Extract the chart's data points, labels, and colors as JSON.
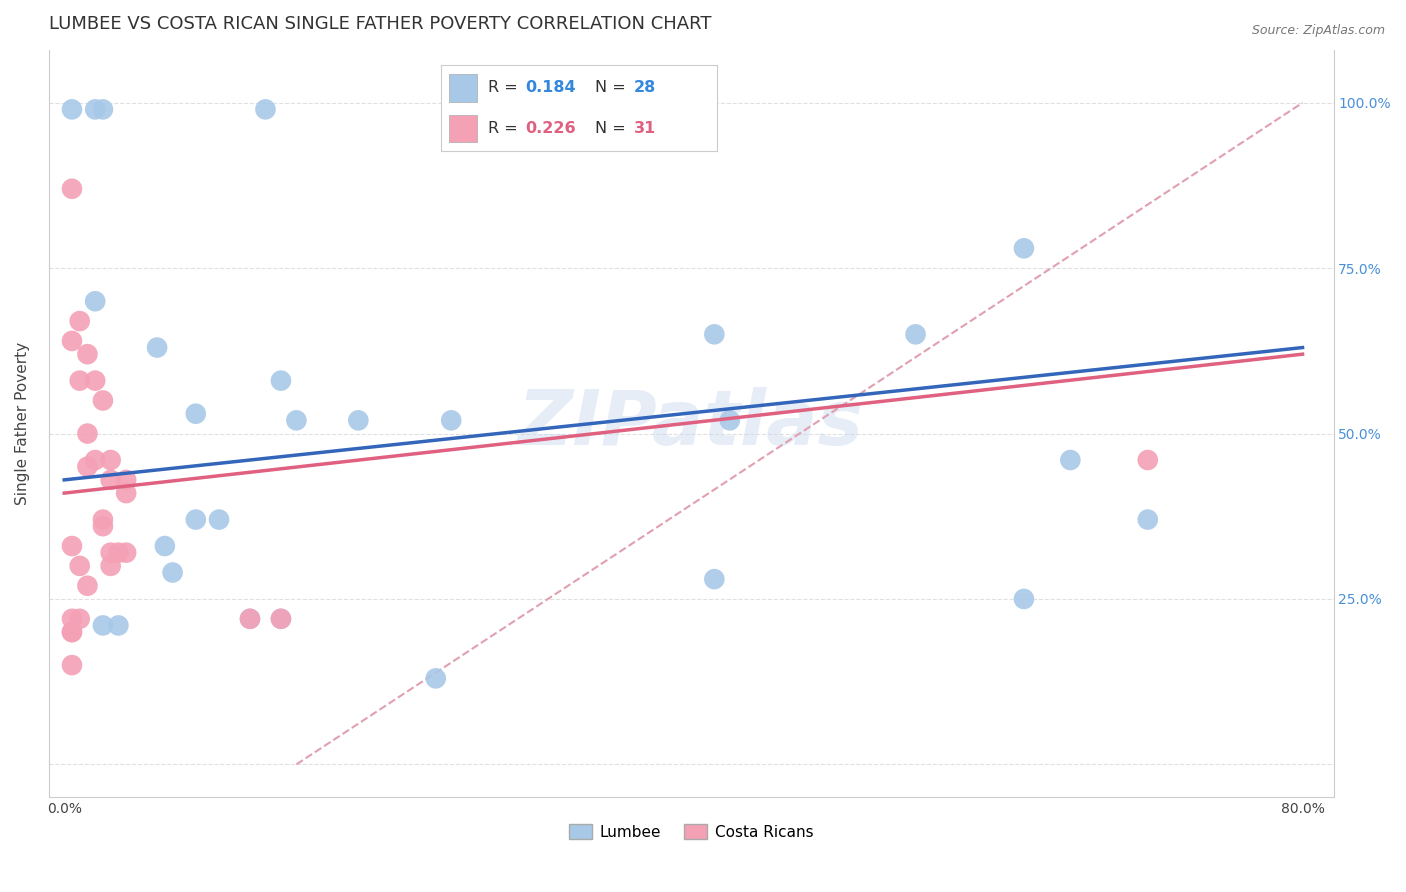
{
  "title": "LUMBEE VS COSTA RICAN SINGLE FATHER POVERTY CORRELATION CHART",
  "source": "Source: ZipAtlas.com",
  "ylabel": "Single Father Poverty",
  "watermark": "ZIPatlas",
  "xlim": [
    -0.01,
    0.82
  ],
  "ylim": [
    -0.05,
    1.08
  ],
  "lumbee_color": "#A8C8E8",
  "costa_rican_color": "#F4A0B5",
  "lumbee_R": "0.184",
  "lumbee_N": "28",
  "costa_rican_R": "0.226",
  "costa_rican_N": "31",
  "lumbee_x": [
    0.005,
    0.02,
    0.025,
    0.13,
    0.02,
    0.06,
    0.085,
    0.14,
    0.15,
    0.19,
    0.25,
    0.42,
    0.43,
    0.55,
    0.62,
    0.65,
    0.7,
    0.62,
    0.42,
    0.085,
    0.1,
    0.065,
    0.07,
    0.12,
    0.14,
    0.025,
    0.035,
    0.24
  ],
  "lumbee_y": [
    0.99,
    0.99,
    0.99,
    0.99,
    0.7,
    0.63,
    0.53,
    0.58,
    0.52,
    0.52,
    0.52,
    0.65,
    0.52,
    0.65,
    0.78,
    0.46,
    0.37,
    0.25,
    0.28,
    0.37,
    0.37,
    0.33,
    0.29,
    0.22,
    0.22,
    0.21,
    0.21,
    0.13
  ],
  "costa_x": [
    0.005,
    0.01,
    0.015,
    0.02,
    0.025,
    0.03,
    0.015,
    0.03,
    0.04,
    0.04,
    0.005,
    0.01,
    0.015,
    0.02,
    0.025,
    0.025,
    0.03,
    0.03,
    0.035,
    0.04,
    0.005,
    0.01,
    0.015,
    0.12,
    0.14,
    0.7,
    0.005,
    0.01,
    0.005,
    0.005,
    0.005
  ],
  "costa_y": [
    0.87,
    0.67,
    0.62,
    0.58,
    0.55,
    0.46,
    0.45,
    0.43,
    0.43,
    0.41,
    0.64,
    0.58,
    0.5,
    0.46,
    0.37,
    0.36,
    0.32,
    0.3,
    0.32,
    0.32,
    0.33,
    0.3,
    0.27,
    0.22,
    0.22,
    0.46,
    0.22,
    0.22,
    0.2,
    0.2,
    0.15
  ],
  "lumbee_line": [
    0.0,
    0.8,
    0.43,
    0.63
  ],
  "costa_line": [
    0.0,
    0.8,
    0.41,
    0.62
  ],
  "diag_line": [
    0.15,
    0.8,
    0.0,
    1.0
  ],
  "lumbee_line_color": "#3366BB",
  "costa_rican_line_color": "#E06080",
  "diagonal_line_color": "#E0A0B0",
  "background_color": "#FFFFFF",
  "grid_color": "#E0E0E0",
  "title_fontsize": 13,
  "axis_label_fontsize": 11,
  "tick_fontsize": 10,
  "legend_fontsize": 12,
  "r_color_blue": "#3388DD",
  "r_color_pink": "#E06080",
  "n_color_blue": "#3388DD",
  "n_color_pink": "#E06080"
}
